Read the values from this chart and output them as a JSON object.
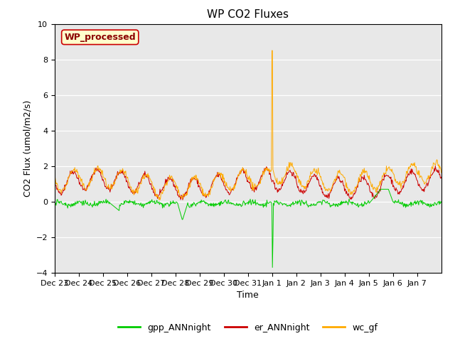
{
  "title": "WP CO2 Fluxes",
  "xlabel": "Time",
  "ylabel": "CO2 Flux (umol/m2/s)",
  "ylim": [
    -4,
    10
  ],
  "yticks": [
    -4,
    -2,
    0,
    2,
    4,
    6,
    8,
    10
  ],
  "xlim": [
    0,
    16
  ],
  "background_color": "#e8e8e8",
  "figure_color": "#ffffff",
  "legend_entries": [
    "gpp_ANNnight",
    "er_ANNnight",
    "wc_gf"
  ],
  "legend_colors": [
    "#00cc00",
    "#cc0000",
    "#ffaa00"
  ],
  "annotation_text": "WP_processed",
  "annotation_color": "#8b0000",
  "annotation_bg": "#ffffcc",
  "line_colors": {
    "gpp": "#00cc00",
    "er": "#cc0000",
    "wc": "#ffaa00"
  },
  "xtick_labels": [
    "Dec 23",
    "Dec 24",
    "Dec 25",
    "Dec 26",
    "Dec 27",
    "Dec 28",
    "Dec 29",
    "Dec 30",
    "Dec 31",
    "Jan 1",
    "Jan 2",
    "Jan 3",
    "Jan 4",
    "Jan 5",
    "Jan 6",
    "Jan 7"
  ],
  "n_days": 16,
  "points_per_day": 48,
  "jan1_day": 9,
  "title_fontsize": 11,
  "label_fontsize": 9,
  "tick_fontsize": 8,
  "legend_fontsize": 9
}
